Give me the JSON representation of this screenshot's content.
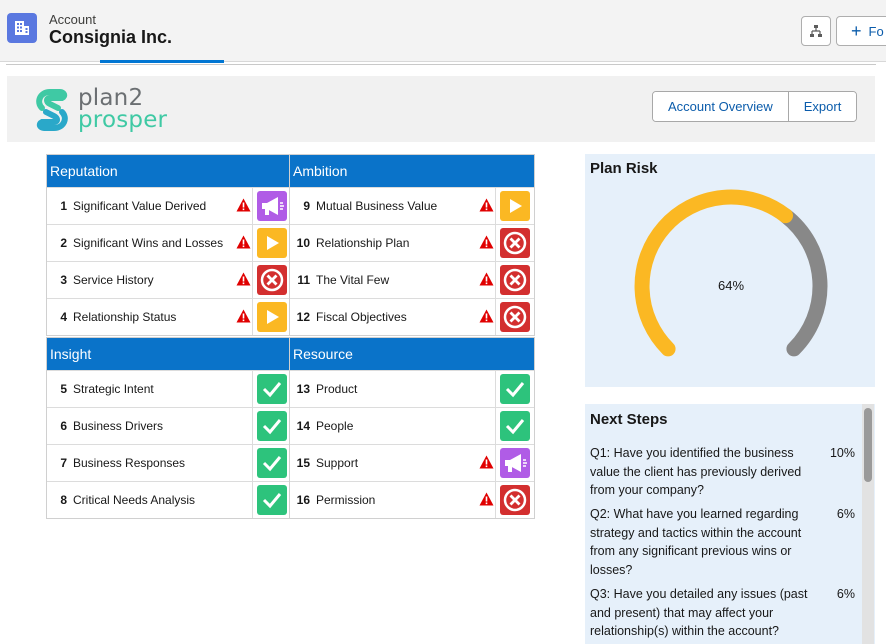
{
  "header": {
    "object_label": "Account",
    "record_name": "Consignia Inc.",
    "follow_label": "Fo"
  },
  "banner": {
    "logo_line1": "plan2",
    "logo_line2": "prosper",
    "buttons": [
      "Account Overview",
      "Export"
    ]
  },
  "panels": [
    {
      "title": "Reputation",
      "rows": [
        {
          "num": "1",
          "label": "Significant Value Derived",
          "warning": true,
          "status": "megaphone"
        },
        {
          "num": "2",
          "label": "Significant Wins and Losses",
          "warning": true,
          "status": "play"
        },
        {
          "num": "3",
          "label": "Service History",
          "warning": true,
          "status": "stop"
        },
        {
          "num": "4",
          "label": "Relationship Status",
          "warning": true,
          "status": "play"
        }
      ]
    },
    {
      "title": "Ambition",
      "rows": [
        {
          "num": "9",
          "label": "Mutual Business Value",
          "warning": true,
          "status": "play"
        },
        {
          "num": "10",
          "label": "Relationship Plan",
          "warning": true,
          "status": "stop"
        },
        {
          "num": "11",
          "label": "The Vital Few",
          "warning": true,
          "status": "stop"
        },
        {
          "num": "12",
          "label": "Fiscal Objectives",
          "warning": true,
          "status": "stop"
        }
      ]
    },
    {
      "title": "Insight",
      "rows": [
        {
          "num": "5",
          "label": "Strategic Intent",
          "warning": false,
          "status": "check"
        },
        {
          "num": "6",
          "label": "Business Drivers",
          "warning": false,
          "status": "check"
        },
        {
          "num": "7",
          "label": "Business Responses",
          "warning": false,
          "status": "check"
        },
        {
          "num": "8",
          "label": "Critical Needs Analysis",
          "warning": false,
          "status": "check"
        }
      ]
    },
    {
      "title": "Resource",
      "rows": [
        {
          "num": "13",
          "label": "Product",
          "warning": false,
          "status": "check"
        },
        {
          "num": "14",
          "label": "People",
          "warning": false,
          "status": "check"
        },
        {
          "num": "15",
          "label": "Support",
          "warning": true,
          "status": "megaphone"
        },
        {
          "num": "16",
          "label": "Permission",
          "warning": true,
          "status": "stop"
        }
      ]
    }
  ],
  "plan_risk": {
    "title": "Plan Risk",
    "value_label": "64%",
    "fraction": 0.64,
    "colors": {
      "fill": "#fbb823",
      "remainder": "#888888"
    }
  },
  "next_steps": {
    "title": "Next Steps",
    "items": [
      {
        "question": "Q1: Have you identified the business value the client has previously derived from your company?",
        "pct": "10%"
      },
      {
        "question": "Q2: What have you learned regarding strategy and tactics within the account from any significant previous wins or losses?",
        "pct": "6%"
      },
      {
        "question": "Q3: Have you detailed any issues (past and present) that may affect your relationship(s) within the account?",
        "pct": "6%"
      }
    ]
  },
  "colors": {
    "brand_blue": "#0a73c9",
    "ok_green": "#2dc37c",
    "play_yellow": "#fbb823",
    "stop_red": "#d32f2f",
    "alert_purple": "#b05ce6"
  }
}
